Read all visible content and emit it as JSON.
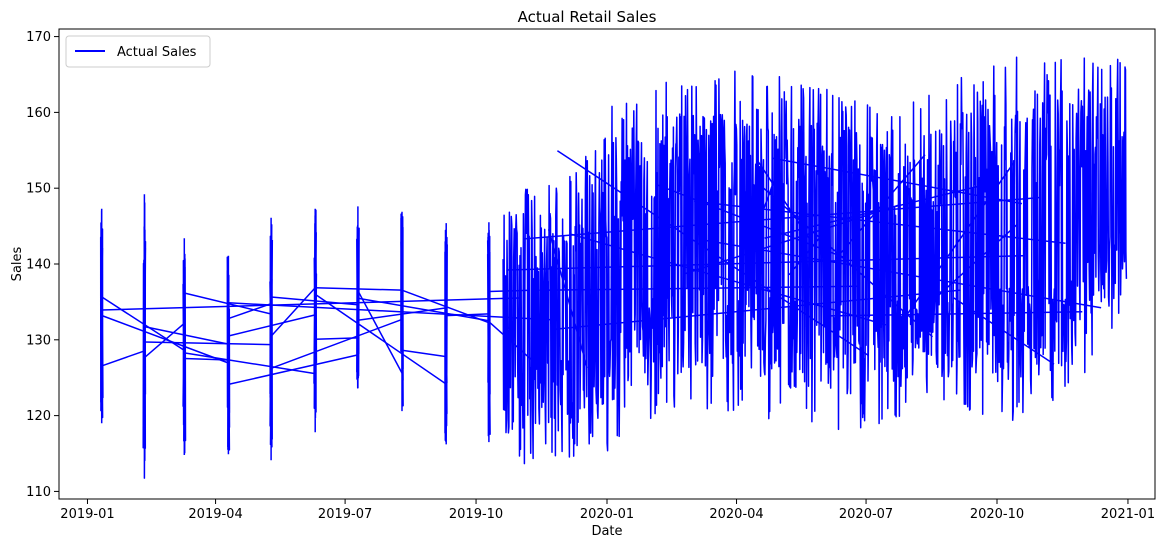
{
  "chart_data": {
    "type": "line",
    "title": "Actual Retail Sales",
    "xlabel": "Date",
    "ylabel": "Sales",
    "legend": {
      "position": "top-left",
      "entries": [
        "Actual Sales"
      ]
    },
    "grid": false,
    "xlim": [
      "2018-12-12",
      "2021-01-20"
    ],
    "ylim": [
      109,
      171
    ],
    "x_ticks": [
      "2019-01",
      "2019-04",
      "2019-07",
      "2019-10",
      "2020-01",
      "2020-04",
      "2020-07",
      "2020-10",
      "2021-01"
    ],
    "y_ticks": [
      110,
      120,
      130,
      140,
      150,
      160,
      170
    ],
    "series": [
      {
        "name": "Actual Sales",
        "color": "#0000ff",
        "spikes": [
          {
            "date": "2019-01-11",
            "min": 119,
            "max": 147.3
          },
          {
            "date": "2019-02-10",
            "min": 111.7,
            "max": 149.2
          },
          {
            "date": "2019-03-10",
            "min": 114.8,
            "max": 143.4
          },
          {
            "date": "2019-04-10",
            "min": 114.9,
            "max": 141.1
          },
          {
            "date": "2019-05-10",
            "min": 114.1,
            "max": 146.1
          },
          {
            "date": "2019-06-10",
            "min": 117.8,
            "max": 147.3
          },
          {
            "date": "2019-07-10",
            "min": 123.6,
            "max": 147.6
          },
          {
            "date": "2019-08-10",
            "min": 120.6,
            "max": 146.9
          },
          {
            "date": "2019-09-10",
            "min": 116.2,
            "max": 145.4
          },
          {
            "date": "2019-10-10",
            "min": 116.5,
            "max": 145.5
          }
        ],
        "dense_start": "2019-10-20",
        "dense_end": "2020-12-31",
        "dense_band": [
          {
            "date": "2019-10-20",
            "min": 113.0,
            "max": 151.4
          },
          {
            "date": "2019-12-01",
            "min": 114.2,
            "max": 150.4
          },
          {
            "date": "2020-01-05",
            "min": 115.3,
            "max": 161.5
          },
          {
            "date": "2020-02-10",
            "min": 120.8,
            "max": 164.1
          },
          {
            "date": "2020-04-05",
            "min": 120.2,
            "max": 166.1
          },
          {
            "date": "2020-06-15",
            "min": 117.8,
            "max": 162.6
          },
          {
            "date": "2020-08-20",
            "min": 120.6,
            "max": 162.6
          },
          {
            "date": "2020-10-05",
            "min": 118.8,
            "max": 168.1
          },
          {
            "date": "2020-11-20",
            "min": 121.4,
            "max": 167.5
          },
          {
            "date": "2020-12-31",
            "min": 133.0,
            "max": 167.2
          }
        ]
      }
    ]
  }
}
